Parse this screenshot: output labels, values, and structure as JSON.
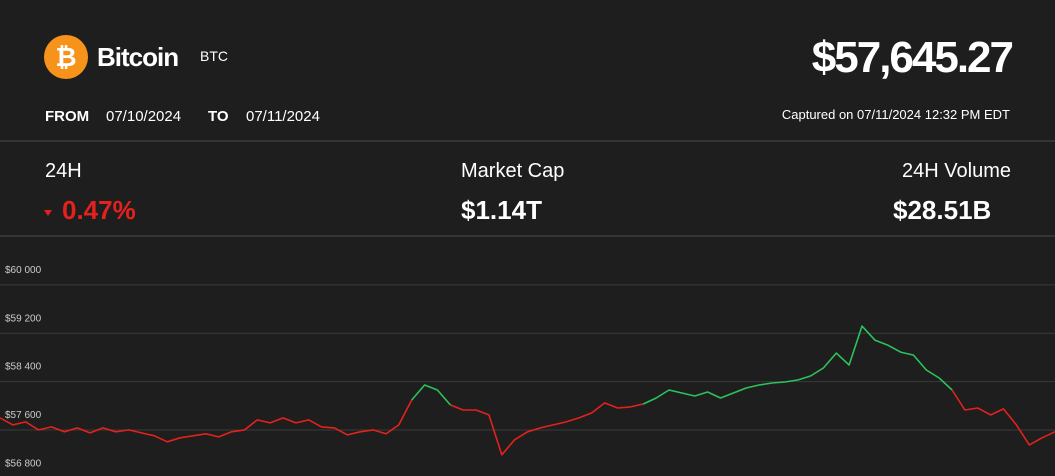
{
  "header": {
    "logo": "₿",
    "name": "Bitcoin",
    "symbol": "BTC",
    "price": "$57,645.27",
    "from_label": "FROM",
    "from": "07/10/2024",
    "to_label": "TO",
    "to": "07/11/2024",
    "captured": "Captured on 07/11/2024 12:32 PM EDT"
  },
  "stats": [
    {
      "label": "24H",
      "value": "0.47%"
    },
    {
      "label": "Market Cap",
      "value": "$1.14T"
    },
    {
      "label": "24H Volume",
      "value": "$28.51B"
    }
  ],
  "chart_data": {
    "type": "line",
    "ylim": [
      56840,
      60775
    ],
    "yticks": [
      {
        "value": 60000,
        "label": "$60 000"
      },
      {
        "value": 59200,
        "label": "$59 200"
      },
      {
        "value": 58400,
        "label": "$58 400"
      },
      {
        "value": 57600,
        "label": "$57 600"
      },
      {
        "value": 56800,
        "label": "$56 800"
      }
    ],
    "grid": true,
    "series": [
      {
        "color": "#e3211d",
        "values": [
          57800,
          57685,
          57735,
          57603,
          57652,
          57570,
          57636,
          57553,
          57636,
          57570,
          57603,
          57553,
          57504,
          57405,
          57471,
          57504,
          57537,
          57487,
          57570,
          57603,
          57768,
          57718,
          57800,
          57718,
          57768,
          57652,
          57636,
          57520,
          57570,
          57603,
          57537,
          57685,
          58097,
          null,
          null,
          58015,
          57932,
          57932,
          57850,
          57190,
          57438,
          57570,
          57636,
          57685,
          57735,
          57800,
          57883,
          58048,
          57965,
          57982,
          58031,
          null,
          null,
          null,
          null,
          null,
          null,
          null,
          null,
          null,
          null,
          null,
          null,
          null,
          null,
          null,
          null,
          null,
          null,
          null,
          null,
          null,
          null,
          null,
          58262,
          57932,
          57965,
          57850,
          57950,
          57685,
          57355,
          57471,
          57570
        ]
      },
      {
        "color": "#2bc25c",
        "values": [
          null,
          null,
          null,
          null,
          null,
          null,
          null,
          null,
          null,
          null,
          null,
          null,
          null,
          null,
          null,
          null,
          null,
          null,
          null,
          null,
          null,
          null,
          null,
          null,
          null,
          null,
          null,
          null,
          null,
          null,
          null,
          null,
          58097,
          58345,
          58262,
          58015,
          null,
          null,
          null,
          null,
          null,
          null,
          null,
          null,
          null,
          null,
          null,
          null,
          null,
          null,
          58031,
          58130,
          58262,
          58213,
          58163,
          58229,
          58130,
          58213,
          58295,
          58345,
          58378,
          58394,
          58427,
          58493,
          58625,
          58872,
          58675,
          59318,
          59087,
          59004,
          58889,
          58839,
          58592,
          58460,
          58262,
          null,
          null,
          null,
          null,
          null,
          null,
          null,
          null
        ]
      }
    ]
  }
}
